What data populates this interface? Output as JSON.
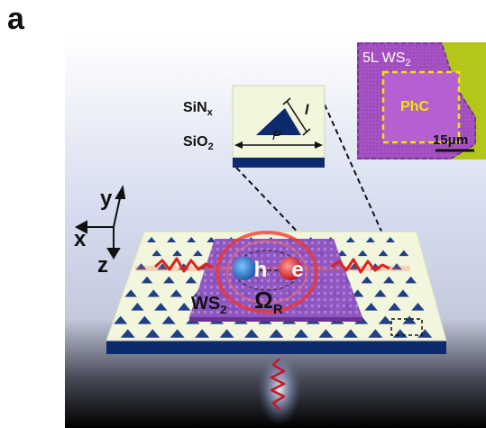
{
  "panel_label": "a",
  "inset_unit_cell": {
    "layer_top": "SiNx",
    "layer_bottom": "SiO2",
    "symbol_length": "l",
    "symbol_period": "P"
  },
  "inset_micrograph": {
    "flake_label": "5L WS2",
    "region_label": "PhC",
    "scale_bar_label": "15μm",
    "colors": {
      "flake": "#a34fc0",
      "phc_region": "#b55fd0",
      "substrate": "#b4c61a",
      "dashed_box": "#f2e600"
    }
  },
  "axes": {
    "x": "x",
    "y": "y",
    "z": "z"
  },
  "device": {
    "material_label": "WS2",
    "hole_label": "h",
    "electron_label": "e",
    "rabi_label": "ΩR",
    "colors": {
      "slab_top": "#f2f6dd",
      "slab_side": "#0c2a6e",
      "triangles": "#1f3f86",
      "monolayer": "#8b4fb7",
      "photon": "#e0201e"
    }
  },
  "background": {
    "top": "#ffffff",
    "middle": "#cfd6ec",
    "bottom": "#000000"
  }
}
